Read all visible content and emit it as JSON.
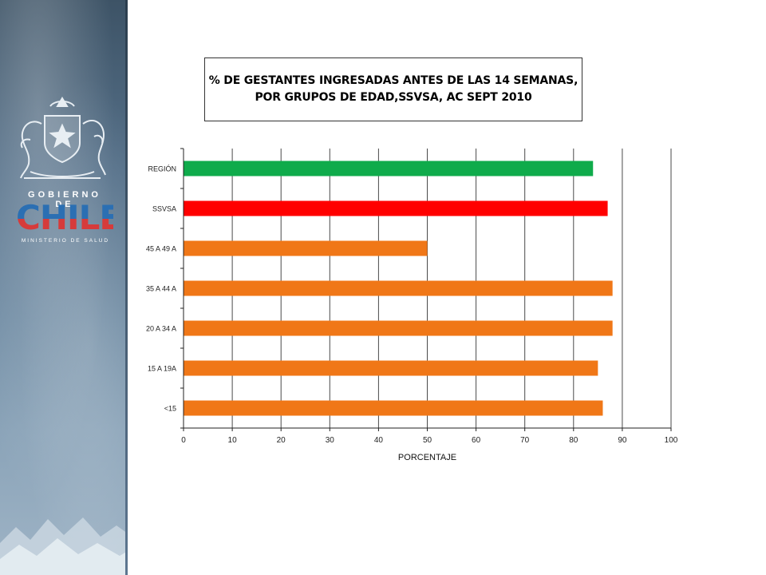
{
  "logo": {
    "gobierno": "GOBIERNO DE",
    "chile": "CHILE",
    "ministerio": "MINISTERIO DE SALUD"
  },
  "chart_data": {
    "type": "bar",
    "orientation": "horizontal",
    "title_lines": [
      "% DE GESTANTES INGRESADAS ANTES DE LAS 14 SEMANAS,",
      "POR GRUPOS DE EDAD,SSVSA, AC SEPT 2010"
    ],
    "xlabel": "PORCENTAJE",
    "ylabel": "",
    "xlim": [
      0,
      100
    ],
    "xticks": [
      0,
      10,
      20,
      30,
      40,
      50,
      60,
      70,
      80,
      90,
      100
    ],
    "grid": true,
    "legend": "none",
    "categories": [
      "REGIÓN",
      "SSVSA",
      "45 A 49 A",
      "35 A 44 A",
      "20 A 34 A",
      "15 A 19A",
      "<15"
    ],
    "values": [
      84,
      87,
      50,
      88,
      88,
      85,
      86
    ],
    "colors": [
      "#0fab4b",
      "#ff0000",
      "#f07717",
      "#f07717",
      "#f07717",
      "#f07717",
      "#f07717"
    ]
  }
}
